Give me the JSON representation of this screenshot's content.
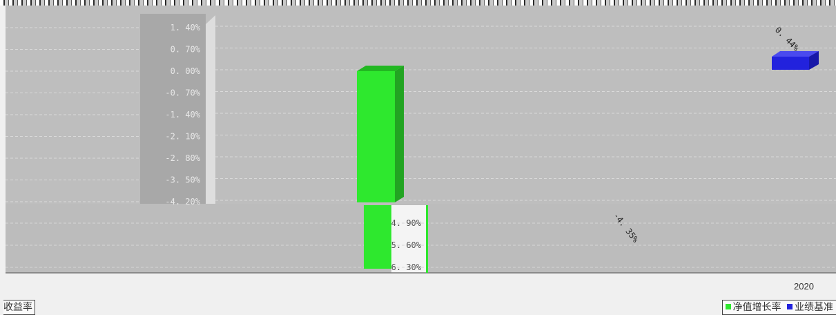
{
  "chart_data": {
    "type": "bar",
    "categories": [
      "2020"
    ],
    "ylim": [
      -6.3,
      1.4
    ],
    "y_ticks": [
      "1. 40%",
      "0. 70%",
      "0. 00%",
      "-0. 70%",
      "-1. 40%",
      "-2. 10%",
      "-2. 80%",
      "-3. 50%",
      "-4. 20%",
      "-4. 90%",
      "-5. 60%",
      "-6. 30%"
    ],
    "series": [
      {
        "name": "净值增长率",
        "values": [
          -4.35
        ],
        "label": "-4. 35%",
        "color": "#2ee82e"
      },
      {
        "name": "业绩基准",
        "values": [
          0.44
        ],
        "label": "0. 44%",
        "color": "#2222dd"
      }
    ],
    "grid": true,
    "legend_position": "bottom-right",
    "extra_series_label": "收益率"
  },
  "legend": {
    "items": [
      {
        "label": "净值增长率",
        "color": "#2ee82e"
      },
      {
        "label": "业绩基准",
        "color": "#2222dd"
      }
    ]
  }
}
